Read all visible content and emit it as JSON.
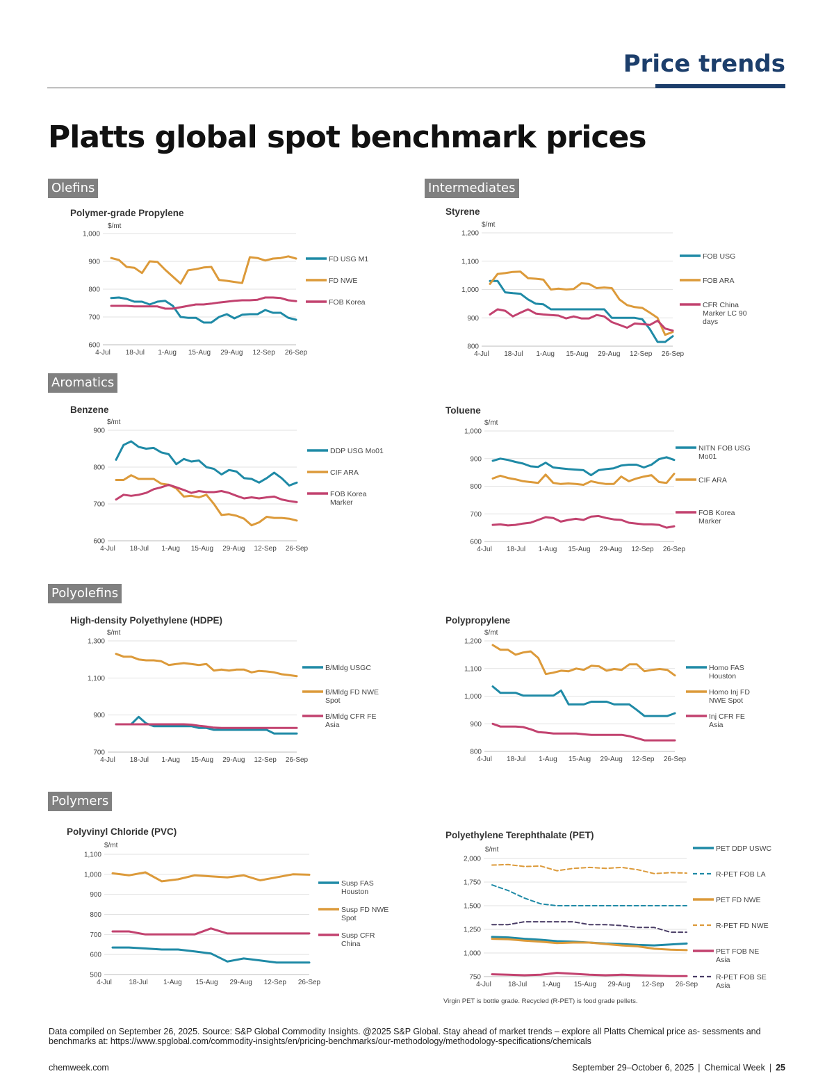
{
  "header": {
    "section": "Price trends",
    "title": "Platts global spot benchmark prices"
  },
  "sections": {
    "olefins": "Olefins",
    "intermediates": "Intermediates",
    "aromatics": "Aromatics",
    "polyolefins": "Polyolefins",
    "polymers": "Polymers"
  },
  "colors": {
    "teal": "#1f8aa6",
    "orange": "#dc9a3a",
    "magenta": "#c2426f",
    "navy": "#1c3e6b",
    "purple": "#4a3d66"
  },
  "chart_data": [
    {
      "id": "propylene",
      "type": "line",
      "title": "Polymer-grade Propylene",
      "ylabel": "$/mt",
      "ylim": [
        600,
        1000
      ],
      "yticks": [
        600,
        700,
        800,
        900,
        1000
      ],
      "ytick_labels": [
        "600",
        "700",
        "800",
        "900",
        "1,000"
      ],
      "x_labels": [
        "4-Jul",
        "18-Jul",
        "1-Aug",
        "15-Aug",
        "29-Aug",
        "12-Sep",
        "26-Sep"
      ],
      "x_points": 25,
      "grid": true,
      "legend": "right",
      "series": [
        {
          "name": "FD USG M1",
          "color": "#1f8aa6",
          "dash": false,
          "values": [
            768,
            770,
            765,
            755,
            755,
            745,
            755,
            758,
            740,
            700,
            697,
            697,
            680,
            680,
            700,
            710,
            695,
            708,
            710,
            710,
            725,
            715,
            715,
            697,
            690
          ]
        },
        {
          "name": "FD NWE",
          "color": "#dc9a3a",
          "dash": false,
          "values": [
            912,
            905,
            880,
            877,
            858,
            900,
            898,
            870,
            845,
            820,
            868,
            872,
            878,
            880,
            833,
            830,
            826,
            822,
            915,
            912,
            903,
            910,
            912,
            918,
            910
          ]
        },
        {
          "name": "FOB Korea",
          "color": "#c2426f",
          "dash": false,
          "values": [
            740,
            740,
            740,
            738,
            738,
            738,
            738,
            730,
            730,
            735,
            740,
            745,
            745,
            748,
            752,
            755,
            758,
            760,
            760,
            762,
            770,
            770,
            768,
            760,
            757
          ]
        }
      ]
    },
    {
      "id": "styrene",
      "type": "line",
      "title": "Styrene",
      "ylabel": "$/mt",
      "ylim": [
        800,
        1200
      ],
      "yticks": [
        800,
        900,
        1000,
        1100,
        1200
      ],
      "ytick_labels": [
        "800",
        "900",
        "1,000",
        "1,100",
        "1,200"
      ],
      "x_labels": [
        "4-Jul",
        "18-Jul",
        "1-Aug",
        "15-Aug",
        "29-Aug",
        "12-Sep",
        "26-Sep"
      ],
      "x_points": 25,
      "grid": true,
      "legend": "right",
      "series": [
        {
          "name": "FOB USG",
          "color": "#1f8aa6",
          "dash": false,
          "values": [
            1030,
            1030,
            990,
            987,
            985,
            965,
            950,
            948,
            930,
            930,
            930,
            930,
            930,
            930,
            930,
            930,
            900,
            900,
            900,
            900,
            895,
            860,
            815,
            815,
            835
          ]
        },
        {
          "name": "FOB ARA",
          "color": "#dc9a3a",
          "dash": false,
          "values": [
            1020,
            1055,
            1058,
            1062,
            1063,
            1040,
            1038,
            1035,
            1000,
            1003,
            1000,
            1002,
            1022,
            1020,
            1005,
            1007,
            1005,
            965,
            945,
            938,
            935,
            918,
            900,
            840,
            850
          ]
        },
        {
          "name": "CFR China Marker LC 90 days",
          "color": "#c2426f",
          "dash": false,
          "values": [
            912,
            930,
            925,
            905,
            918,
            930,
            915,
            912,
            910,
            908,
            898,
            905,
            898,
            898,
            910,
            905,
            885,
            875,
            865,
            880,
            878,
            875,
            890,
            862,
            855
          ]
        }
      ]
    },
    {
      "id": "benzene",
      "type": "line",
      "title": "Benzene",
      "ylabel": "$/mt",
      "ylim": [
        600,
        900
      ],
      "yticks": [
        600,
        700,
        800,
        900
      ],
      "ytick_labels": [
        "600",
        "700",
        "800",
        "900"
      ],
      "x_labels": [
        "4-Jul",
        "18-Jul",
        "1-Aug",
        "15-Aug",
        "29-Aug",
        "12-Sep",
        "26-Sep"
      ],
      "x_points": 25,
      "grid": true,
      "legend": "right",
      "series": [
        {
          "name": "DDP USG Mo01",
          "color": "#1f8aa6",
          "dash": false,
          "values": [
            820,
            860,
            870,
            855,
            850,
            852,
            840,
            835,
            808,
            822,
            815,
            818,
            800,
            795,
            780,
            792,
            788,
            770,
            768,
            758,
            770,
            785,
            770,
            750,
            758
          ]
        },
        {
          "name": "CIF ARA",
          "color": "#dc9a3a",
          "dash": false,
          "values": [
            765,
            765,
            778,
            768,
            768,
            768,
            755,
            752,
            742,
            720,
            722,
            718,
            725,
            700,
            670,
            672,
            668,
            660,
            642,
            650,
            665,
            662,
            662,
            660,
            655
          ]
        },
        {
          "name": "FOB Korea Marker",
          "color": "#c2426f",
          "dash": false,
          "values": [
            712,
            725,
            722,
            725,
            730,
            740,
            745,
            752,
            745,
            738,
            730,
            735,
            732,
            732,
            735,
            730,
            722,
            715,
            718,
            715,
            718,
            720,
            712,
            708,
            705
          ]
        }
      ]
    },
    {
      "id": "toluene",
      "type": "line",
      "title": "Toluene",
      "ylabel": "$/mt",
      "ylim": [
        600,
        1000
      ],
      "yticks": [
        600,
        700,
        800,
        900,
        1000
      ],
      "ytick_labels": [
        "600",
        "700",
        "800",
        "900",
        "1,000"
      ],
      "x_labels": [
        "4-Jul",
        "18-Jul",
        "1-Aug",
        "15-Aug",
        "29-Aug",
        "12-Sep",
        "26-Sep"
      ],
      "x_points": 25,
      "grid": true,
      "legend": "right",
      "series": [
        {
          "name": "NITN FOB USG Mo01",
          "color": "#1f8aa6",
          "dash": false,
          "values": [
            892,
            900,
            895,
            888,
            882,
            872,
            870,
            885,
            868,
            865,
            862,
            860,
            858,
            840,
            858,
            862,
            865,
            875,
            878,
            878,
            868,
            878,
            898,
            905,
            895
          ]
        },
        {
          "name": "CIF ARA",
          "color": "#dc9a3a",
          "dash": false,
          "values": [
            828,
            838,
            830,
            825,
            818,
            815,
            812,
            842,
            812,
            808,
            810,
            808,
            805,
            818,
            812,
            808,
            808,
            835,
            818,
            828,
            835,
            840,
            815,
            812,
            845
          ]
        },
        {
          "name": "FOB Korea Marker",
          "color": "#c2426f",
          "dash": false,
          "values": [
            660,
            662,
            658,
            660,
            665,
            668,
            678,
            688,
            685,
            672,
            678,
            682,
            678,
            690,
            692,
            685,
            680,
            678,
            668,
            665,
            662,
            662,
            660,
            650,
            655
          ]
        }
      ]
    },
    {
      "id": "hdpe",
      "type": "line",
      "title": "High-density Polyethylene (HDPE)",
      "ylabel": "$/mt",
      "ylim": [
        700,
        1300
      ],
      "yticks": [
        700,
        900,
        1100,
        1300
      ],
      "ytick_labels": [
        "700",
        "900",
        "1,100",
        "1,300"
      ],
      "x_labels": [
        "4-Jul",
        "18-Jul",
        "1-Aug",
        "15-Aug",
        "29-Aug",
        "12-Sep",
        "26-Sep"
      ],
      "x_points": 25,
      "grid": true,
      "legend": "right",
      "series": [
        {
          "name": "B/Mldg USGC",
          "color": "#1f8aa6",
          "dash": false,
          "values": [
            850,
            850,
            850,
            890,
            855,
            840,
            840,
            840,
            840,
            840,
            840,
            830,
            830,
            820,
            820,
            820,
            820,
            820,
            820,
            820,
            820,
            800,
            800,
            800,
            800
          ]
        },
        {
          "name": "B/Mldg FD NWE Spot",
          "color": "#dc9a3a",
          "dash": false,
          "values": [
            1230,
            1215,
            1215,
            1200,
            1195,
            1195,
            1190,
            1170,
            1175,
            1180,
            1175,
            1170,
            1175,
            1140,
            1145,
            1140,
            1145,
            1145,
            1130,
            1138,
            1135,
            1130,
            1120,
            1115,
            1110
          ]
        },
        {
          "name": "B/Mldg CFR FE Asia",
          "color": "#c2426f",
          "dash": false,
          "values": [
            850,
            850,
            850,
            850,
            850,
            850,
            850,
            850,
            850,
            850,
            848,
            842,
            838,
            832,
            830,
            830,
            830,
            830,
            830,
            830,
            830,
            830,
            830,
            830,
            830
          ]
        }
      ]
    },
    {
      "id": "polypropylene",
      "type": "line",
      "title": "Polypropylene",
      "ylabel": "$/mt",
      "ylim": [
        800,
        1200
      ],
      "yticks": [
        800,
        900,
        1000,
        1100,
        1200
      ],
      "ytick_labels": [
        "800",
        "900",
        "1,000",
        "1,100",
        "1,200"
      ],
      "x_labels": [
        "4-Jul",
        "18-Jul",
        "1-Aug",
        "15-Aug",
        "29-Aug",
        "12-Sep",
        "26-Sep"
      ],
      "x_points": 25,
      "grid": true,
      "legend": "right",
      "series": [
        {
          "name": "Homo FAS Houston",
          "color": "#1f8aa6",
          "dash": false,
          "values": [
            1035,
            1012,
            1012,
            1012,
            1002,
            1002,
            1002,
            1002,
            1002,
            1020,
            970,
            970,
            970,
            980,
            980,
            980,
            970,
            970,
            970,
            950,
            928,
            928,
            928,
            928,
            938
          ]
        },
        {
          "name": "Homo Inj FD NWE Spot",
          "color": "#dc9a3a",
          "dash": false,
          "values": [
            1185,
            1168,
            1168,
            1150,
            1158,
            1162,
            1138,
            1080,
            1085,
            1092,
            1090,
            1100,
            1095,
            1110,
            1108,
            1092,
            1098,
            1095,
            1115,
            1115,
            1090,
            1095,
            1098,
            1095,
            1075
          ]
        },
        {
          "name": "Inj CFR FE Asia",
          "color": "#c2426f",
          "dash": false,
          "values": [
            900,
            890,
            890,
            890,
            888,
            880,
            870,
            868,
            865,
            865,
            865,
            865,
            862,
            860,
            860,
            860,
            860,
            860,
            855,
            848,
            840,
            840,
            840,
            840,
            840
          ]
        }
      ]
    },
    {
      "id": "pvc",
      "type": "line",
      "title": "Polyvinyl Chloride (PVC)",
      "ylabel": "$/mt",
      "ylim": [
        500,
        1100
      ],
      "yticks": [
        500,
        600,
        700,
        800,
        900,
        1000,
        1100
      ],
      "ytick_labels": [
        "500",
        "600",
        "700",
        "800",
        "900",
        "1,000",
        "1,100"
      ],
      "x_labels": [
        "4-Jul",
        "18-Jul",
        "1-Aug",
        "15-Aug",
        "29-Aug",
        "12-Sep",
        "26-Sep"
      ],
      "x_points": 13,
      "grid": true,
      "legend": "right",
      "series": [
        {
          "name": "Susp FAS Houston",
          "color": "#1f8aa6",
          "dash": false,
          "values": [
            635,
            635,
            630,
            625,
            625,
            615,
            605,
            565,
            580,
            570,
            560,
            560,
            560
          ]
        },
        {
          "name": "Susp FD NWE Spot",
          "color": "#dc9a3a",
          "dash": false,
          "values": [
            1005,
            995,
            1010,
            965,
            975,
            995,
            990,
            985,
            995,
            970,
            985,
            1000,
            998
          ]
        },
        {
          "name": "Susp CFR China",
          "color": "#c2426f",
          "dash": false,
          "values": [
            715,
            715,
            700,
            700,
            700,
            700,
            730,
            705,
            705,
            705,
            705,
            705,
            705
          ]
        }
      ]
    },
    {
      "id": "pet",
      "type": "line",
      "title": "Polyethylene Terephthalate (PET)",
      "ylabel": "$/mt",
      "ylim": [
        750,
        2000
      ],
      "yticks": [
        750,
        1000,
        1250,
        1500,
        1750,
        2000
      ],
      "ytick_labels": [
        "750",
        "1,000",
        "1,250",
        "1,500",
        "1,750",
        "2,000"
      ],
      "x_labels": [
        "4-Jul",
        "18-Jul",
        "1-Aug",
        "15-Aug",
        "29-Aug",
        "12-Sep",
        "26-Sep"
      ],
      "x_points": 13,
      "grid": true,
      "legend": "right",
      "note": "Virgin PET is bottle grade. Recycled (R-PET) is food grade pellets.",
      "series": [
        {
          "name": "PET DDP USWC",
          "color": "#1f8aa6",
          "dash": false,
          "values": [
            1170,
            1165,
            1150,
            1140,
            1125,
            1120,
            1110,
            1100,
            1095,
            1085,
            1080,
            1090,
            1100
          ]
        },
        {
          "name": "R-PET FOB LA",
          "color": "#1f8aa6",
          "dash": true,
          "values": [
            1720,
            1660,
            1580,
            1520,
            1500,
            1500,
            1500,
            1500,
            1500,
            1500,
            1500,
            1500,
            1500
          ]
        },
        {
          "name": "PET FD NWE",
          "color": "#dc9a3a",
          "dash": false,
          "values": [
            1150,
            1145,
            1130,
            1120,
            1105,
            1110,
            1110,
            1095,
            1080,
            1070,
            1045,
            1035,
            1030
          ]
        },
        {
          "name": "R-PET FD NWE",
          "color": "#dc9a3a",
          "dash": true,
          "values": [
            1930,
            1935,
            1915,
            1920,
            1870,
            1895,
            1905,
            1895,
            1905,
            1880,
            1840,
            1850,
            1845
          ]
        },
        {
          "name": "PET FOB NE Asia",
          "color": "#c2426f",
          "dash": false,
          "values": [
            775,
            770,
            765,
            770,
            790,
            780,
            770,
            765,
            770,
            765,
            760,
            755,
            755
          ]
        },
        {
          "name": "R-PET FOB SE Asia",
          "color": "#4a3d66",
          "dash": true,
          "values": [
            1300,
            1300,
            1330,
            1330,
            1330,
            1330,
            1300,
            1300,
            1290,
            1270,
            1270,
            1220,
            1220
          ]
        }
      ]
    }
  ],
  "footer": {
    "note": "Data compiled on September 26, 2025. Source: S&P Global Commodity Insights. @2025 S&P Global. Stay ahead of market trends – explore all Platts Chemical price as- sessments and benchmarks at: https://www.spglobal.com/commodity-insights/en/pricing-benchmarks/our-methodology/methodology-specifications/chemicals",
    "site": "chemweek.com",
    "date": "September 29–October 6, 2025",
    "publication": "Chemical Week",
    "page": "25"
  }
}
